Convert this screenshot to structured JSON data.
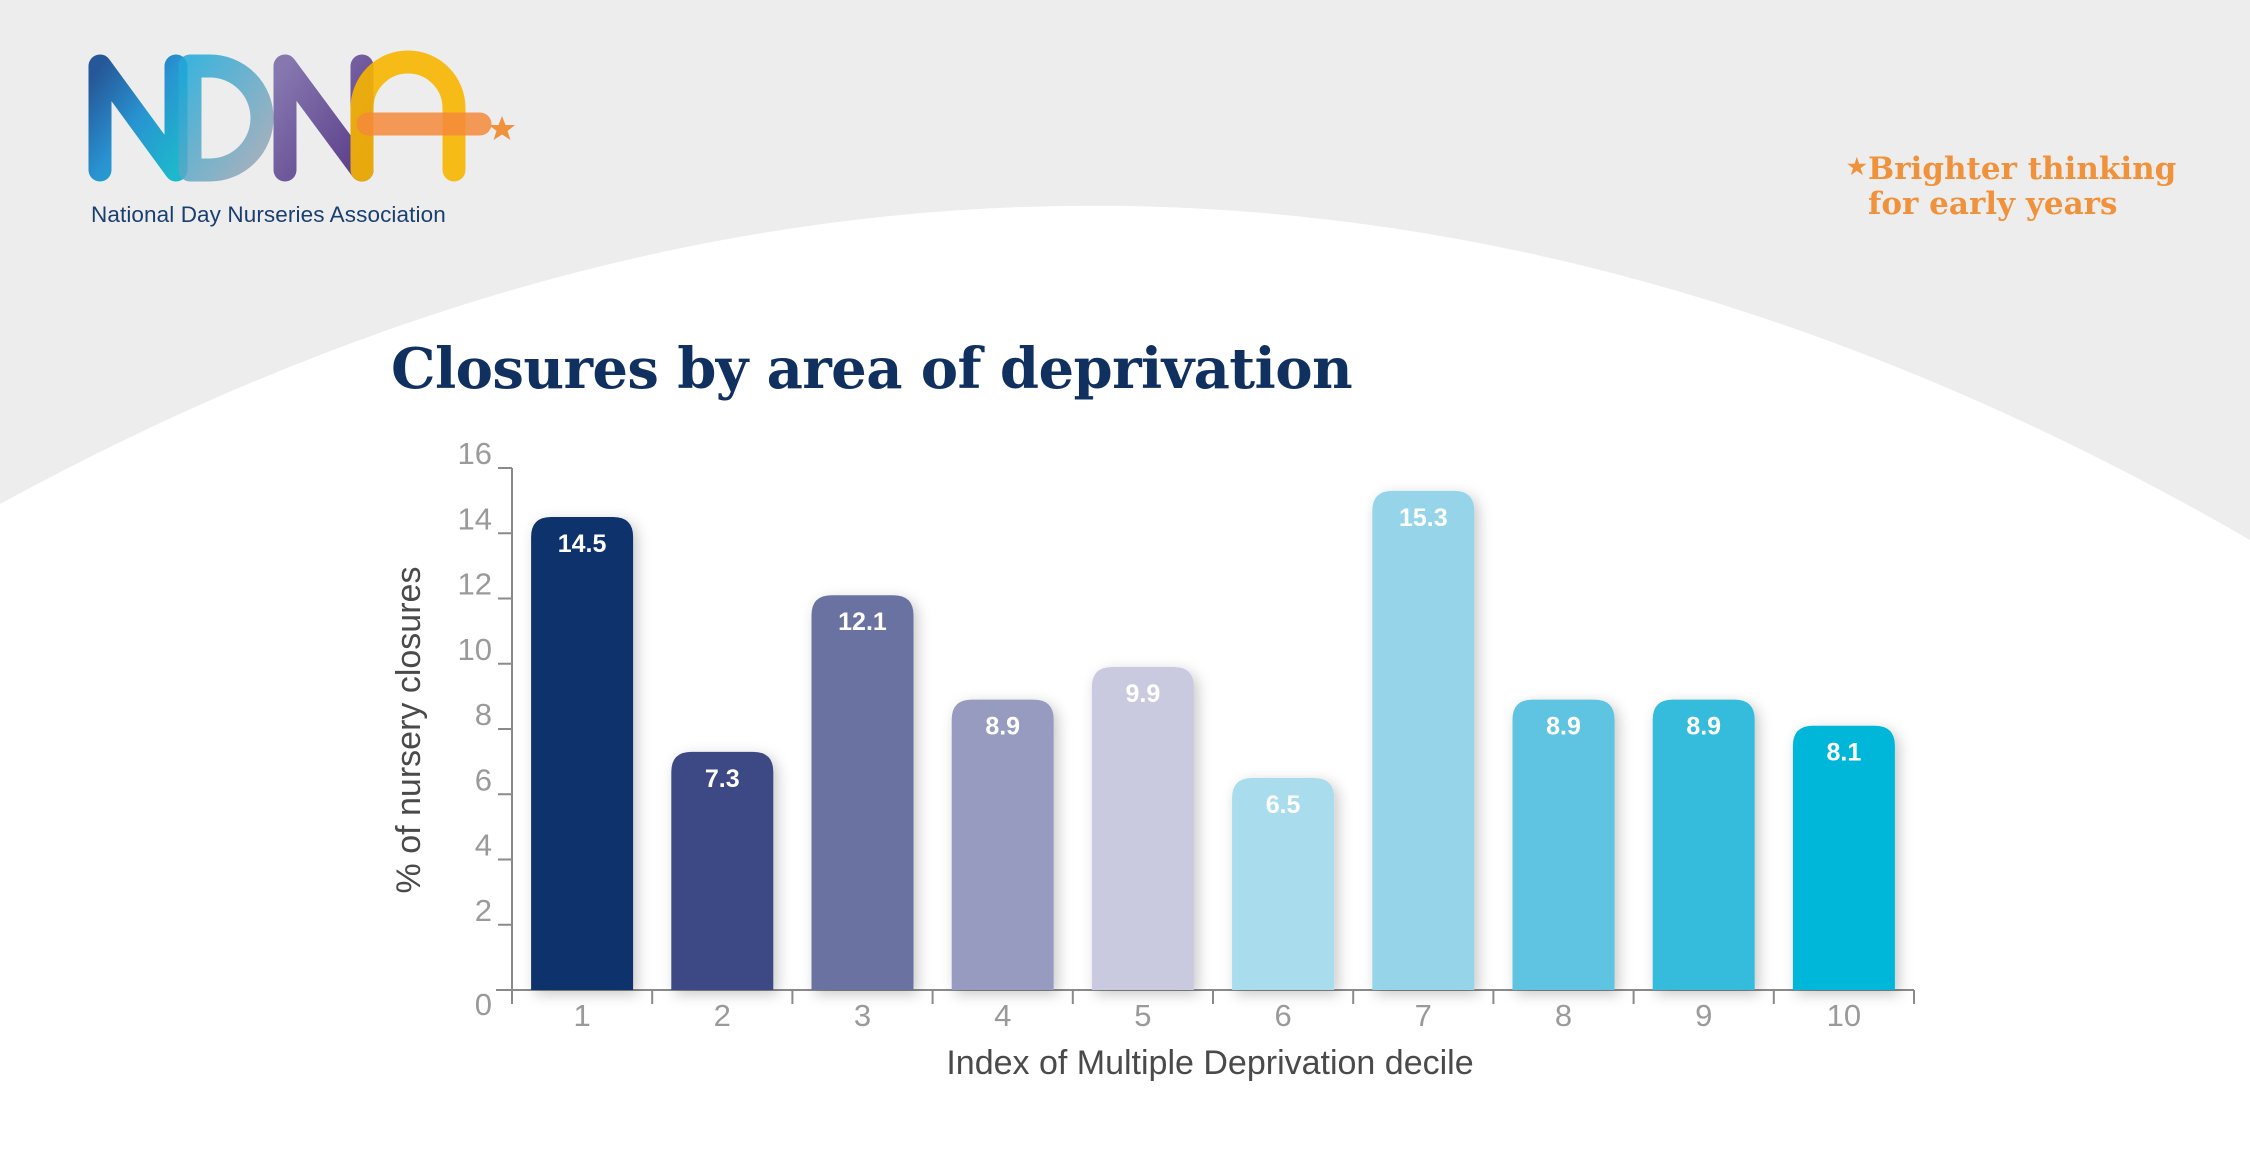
{
  "header": {
    "logo_letters": "NDNA",
    "logo_caption": "National Day Nurseries Association",
    "tagline_line1": "Brighter thinking",
    "tagline_line2": "for early years",
    "tagline_star": "★"
  },
  "colors": {
    "background_top": "#ededee",
    "title": "#10315f",
    "tagline": "#f0923b",
    "axis": "#8a8a8a",
    "axis_text": "#9a9a9a",
    "axis_label": "#4a4a4a"
  },
  "chart_data": {
    "type": "bar",
    "title": "Closures by area of deprivation",
    "xlabel": "Index of Multiple Deprivation decile",
    "ylabel": "% of nursery closures",
    "categories": [
      "1",
      "2",
      "3",
      "4",
      "5",
      "6",
      "7",
      "8",
      "9",
      "10"
    ],
    "values": [
      14.5,
      7.3,
      12.1,
      8.9,
      9.9,
      6.5,
      15.3,
      8.9,
      8.9,
      8.1
    ],
    "data_labels": [
      "14.5",
      "7.3",
      "12.1",
      "8.9",
      "9.9",
      "6.5",
      "15.3",
      "8.9",
      "8.9",
      "8.1"
    ],
    "bar_colors": [
      "#10306c",
      "#3c4a85",
      "#6a72a2",
      "#979bc0",
      "#c9cae0",
      "#a9dcec",
      "#96d5e9",
      "#5fc4e2",
      "#35bcdc",
      "#06b7da"
    ],
    "yticks": [
      0,
      2,
      4,
      6,
      8,
      10,
      12,
      14,
      16
    ],
    "ylim": [
      0,
      16
    ],
    "grid": false,
    "legend": "none"
  }
}
